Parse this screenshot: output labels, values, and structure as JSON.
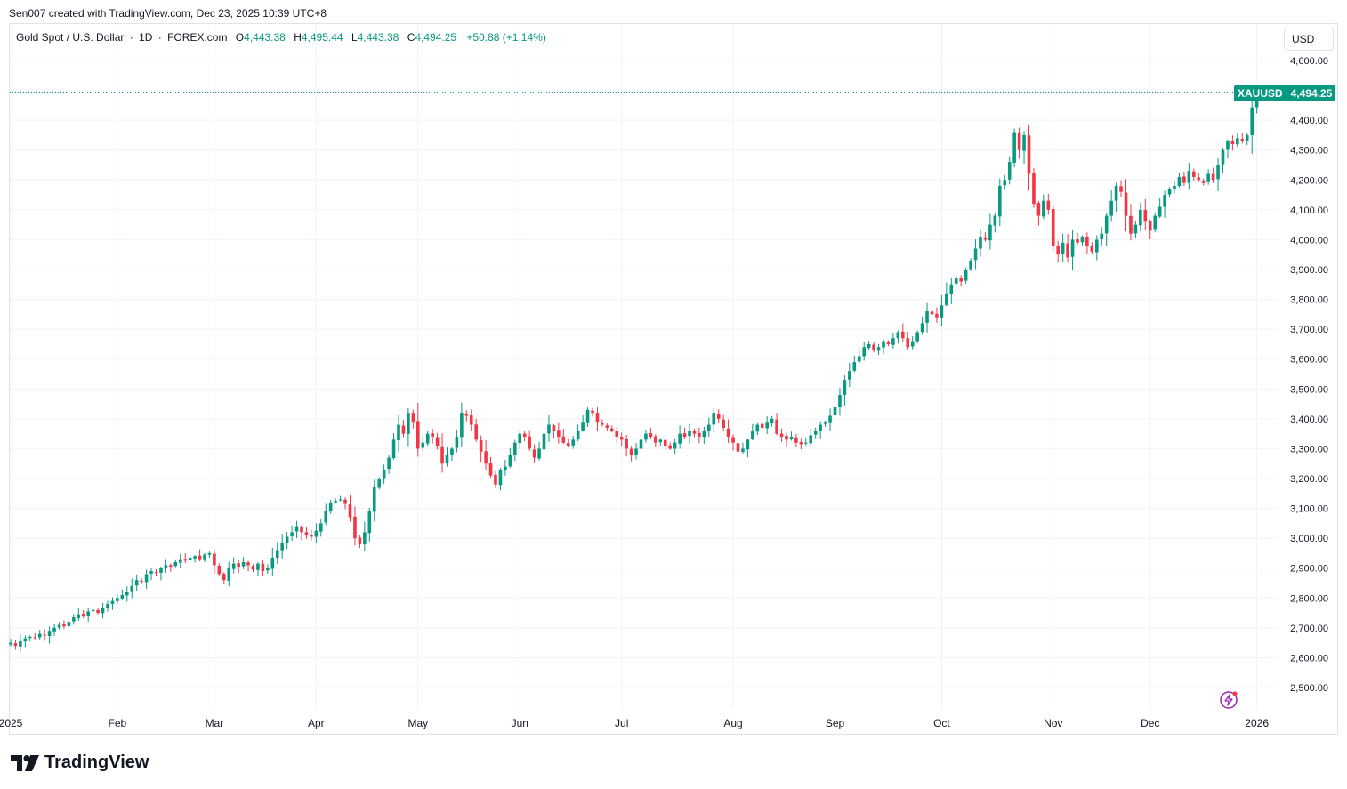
{
  "header": {
    "attribution": "Sen007 created with TradingView.com, Dec 23, 2025 10:39 UTC+8"
  },
  "legend": {
    "symbol": "Gold Spot / U.S. Dollar",
    "interval": "1D",
    "exchange": "FOREX.com",
    "open_label": "O",
    "open": "4,443.38",
    "high_label": "H",
    "high": "4,495.44",
    "low_label": "L",
    "low": "4,443.38",
    "close_label": "C",
    "close": "4,494.25",
    "change": "+50.88 (+1.14%)"
  },
  "currency": "USD",
  "last_price_tag": {
    "symbol": "XAUUSD",
    "price": "4,494.25"
  },
  "brand": {
    "name": "TradingView"
  },
  "colors": {
    "up": "#089981",
    "down": "#f23645",
    "grid": "#f0f3fa",
    "axis_text": "#131722"
  },
  "chart_data": {
    "type": "candlestick",
    "title": "Gold Spot / U.S. Dollar · 1D · FOREX.com",
    "ylabel": "USD",
    "ylim": [
      2450,
      4650
    ],
    "y_ticks": [
      2500,
      2600,
      2700,
      2800,
      2900,
      3000,
      3100,
      3200,
      3300,
      3400,
      3500,
      3600,
      3700,
      3800,
      3900,
      4000,
      4100,
      4200,
      4300,
      4400,
      4600
    ],
    "y_tick_labels": [
      "2,500.00",
      "2,600.00",
      "2,700.00",
      "2,800.00",
      "2,900.00",
      "3,000.00",
      "3,100.00",
      "3,200.00",
      "3,300.00",
      "3,400.00",
      "3,500.00",
      "3,600.00",
      "3,700.00",
      "3,800.00",
      "3,900.00",
      "4,000.00",
      "4,100.00",
      "4,200.00",
      "4,300.00",
      "4,400.00",
      "4,600.00"
    ],
    "x_ticks": [
      {
        "label": "2025",
        "day": 0
      },
      {
        "label": "Feb",
        "day": 22
      },
      {
        "label": "Mar",
        "day": 42
      },
      {
        "label": "Apr",
        "day": 63
      },
      {
        "label": "May",
        "day": 84
      },
      {
        "label": "Jun",
        "day": 105
      },
      {
        "label": "Jul",
        "day": 126
      },
      {
        "label": "Aug",
        "day": 149
      },
      {
        "label": "Sep",
        "day": 170
      },
      {
        "label": "Oct",
        "day": 192
      },
      {
        "label": "Nov",
        "day": 215
      },
      {
        "label": "Dec",
        "day": 235
      },
      {
        "label": "2026",
        "day": 257
      }
    ],
    "last_price": 4494.25,
    "closes": [
      2650,
      2640,
      2655,
      2665,
      2670,
      2668,
      2680,
      2675,
      2690,
      2700,
      2710,
      2705,
      2720,
      2735,
      2745,
      2740,
      2755,
      2760,
      2750,
      2765,
      2780,
      2790,
      2800,
      2810,
      2820,
      2840,
      2860,
      2855,
      2880,
      2890,
      2885,
      2900,
      2910,
      2905,
      2920,
      2930,
      2925,
      2935,
      2940,
      2930,
      2945,
      2950,
      2910,
      2880,
      2860,
      2900,
      2915,
      2905,
      2920,
      2910,
      2895,
      2915,
      2890,
      2900,
      2935,
      2960,
      2985,
      3005,
      3020,
      3040,
      3020,
      3010,
      3005,
      3025,
      3050,
      3090,
      3120,
      3125,
      3130,
      3115,
      3070,
      3000,
      2980,
      3020,
      3090,
      3170,
      3200,
      3230,
      3270,
      3330,
      3380,
      3350,
      3420,
      3390,
      3300,
      3320,
      3350,
      3340,
      3310,
      3250,
      3280,
      3300,
      3340,
      3420,
      3410,
      3380,
      3330,
      3290,
      3250,
      3210,
      3180,
      3230,
      3240,
      3280,
      3320,
      3350,
      3340,
      3300,
      3270,
      3300,
      3350,
      3380,
      3360,
      3340,
      3320,
      3310,
      3330,
      3360,
      3390,
      3430,
      3420,
      3390,
      3380,
      3370,
      3360,
      3340,
      3330,
      3300,
      3280,
      3300,
      3330,
      3350,
      3340,
      3320,
      3330,
      3310,
      3300,
      3320,
      3350,
      3340,
      3360,
      3350,
      3340,
      3360,
      3380,
      3420,
      3400,
      3370,
      3340,
      3320,
      3290,
      3300,
      3330,
      3360,
      3380,
      3370,
      3390,
      3400,
      3350,
      3340,
      3330,
      3340,
      3320,
      3315,
      3320,
      3345,
      3360,
      3380,
      3390,
      3410,
      3440,
      3480,
      3530,
      3560,
      3590,
      3610,
      3640,
      3650,
      3630,
      3640,
      3660,
      3650,
      3670,
      3690,
      3670,
      3640,
      3660,
      3690,
      3720,
      3760,
      3750,
      3740,
      3780,
      3820,
      3850,
      3870,
      3860,
      3900,
      3930,
      3970,
      4010,
      4000,
      4050,
      4080,
      4180,
      4200,
      4260,
      4360,
      4300,
      4350,
      4220,
      4120,
      4080,
      4130,
      4100,
      3980,
      3950,
      3990,
      3940,
      4000,
      3990,
      4010,
      3980,
      3960,
      4000,
      4020,
      4080,
      4130,
      4180,
      4160,
      4080,
      4020,
      4050,
      4100,
      4060,
      4030,
      4080,
      4110,
      4150,
      4170,
      4180,
      4210,
      4190,
      4230,
      4210,
      4200,
      4190,
      4220,
      4200,
      4250,
      4300,
      4330,
      4320,
      4340,
      4330,
      4350,
      4443,
      4494
    ]
  }
}
